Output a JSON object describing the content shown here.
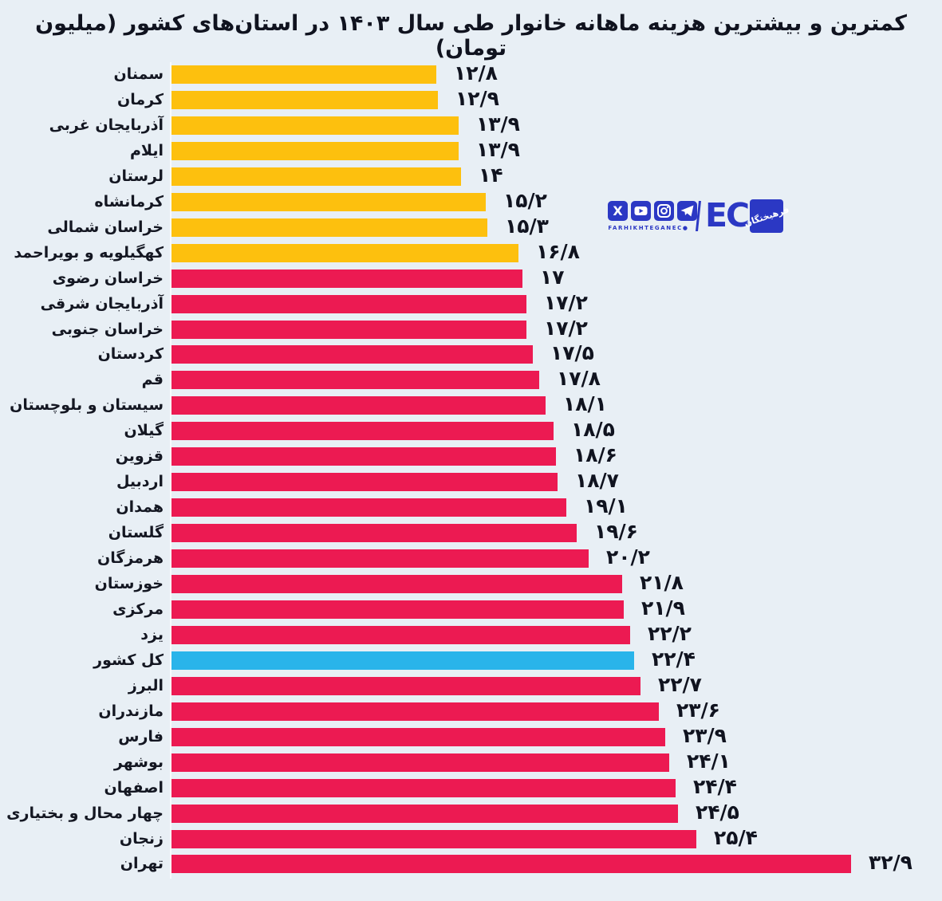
{
  "title": "کمترین و بیشترین هزینه ماهانه خانوار طی سال ۱۴۰۳ در استان‌های کشور (میلیون تومان)",
  "chart_data": {
    "type": "bar",
    "orientation": "horizontal",
    "title": "کمترین و بیشترین هزینه ماهانه خانوار طی سال ۱۴۰۳ در استان‌های کشور (میلیون تومان)",
    "unit": "میلیون تومان",
    "xlim": [
      0,
      33
    ],
    "legend": "none",
    "grid": false,
    "colors": {
      "lowest": "#fdc00e",
      "regular": "#ec1a52",
      "national": "#29b4ea",
      "background": "#e8eff5",
      "text": "#10131f"
    },
    "bars": [
      {
        "label": "سمنان",
        "value": 12.8,
        "value_label": "۱۲/۸",
        "group": "lowest"
      },
      {
        "label": "کرمان",
        "value": 12.9,
        "value_label": "۱۲/۹",
        "group": "lowest"
      },
      {
        "label": "آذربایجان غربی",
        "value": 13.9,
        "value_label": "۱۳/۹",
        "group": "lowest"
      },
      {
        "label": "ایلام",
        "value": 13.9,
        "value_label": "۱۳/۹",
        "group": "lowest"
      },
      {
        "label": "لرستان",
        "value": 14.0,
        "value_label": "۱۴",
        "group": "lowest"
      },
      {
        "label": "کرمانشاه",
        "value": 15.2,
        "value_label": "۱۵/۲",
        "group": "lowest"
      },
      {
        "label": "خراسان شمالی",
        "value": 15.3,
        "value_label": "۱۵/۳",
        "group": "lowest"
      },
      {
        "label": "کهگیلویه و بویراحمد",
        "value": 16.8,
        "value_label": "۱۶/۸",
        "group": "lowest"
      },
      {
        "label": "خراسان رضوی",
        "value": 17.0,
        "value_label": "۱۷",
        "group": "regular"
      },
      {
        "label": "آذربایجان شرقی",
        "value": 17.2,
        "value_label": "۱۷/۲",
        "group": "regular"
      },
      {
        "label": "خراسان جنوبی",
        "value": 17.2,
        "value_label": "۱۷/۲",
        "group": "regular"
      },
      {
        "label": "کردستان",
        "value": 17.5,
        "value_label": "۱۷/۵",
        "group": "regular"
      },
      {
        "label": "قم",
        "value": 17.8,
        "value_label": "۱۷/۸",
        "group": "regular"
      },
      {
        "label": "سیستان و بلوچستان",
        "value": 18.1,
        "value_label": "۱۸/۱",
        "group": "regular"
      },
      {
        "label": "گیلان",
        "value": 18.5,
        "value_label": "۱۸/۵",
        "group": "regular"
      },
      {
        "label": "قزوین",
        "value": 18.6,
        "value_label": "۱۸/۶",
        "group": "regular"
      },
      {
        "label": "اردبیل",
        "value": 18.7,
        "value_label": "۱۸/۷",
        "group": "regular"
      },
      {
        "label": "همدان",
        "value": 19.1,
        "value_label": "۱۹/۱",
        "group": "regular"
      },
      {
        "label": "گلستان",
        "value": 19.6,
        "value_label": "۱۹/۶",
        "group": "regular"
      },
      {
        "label": "هرمزگان",
        "value": 20.2,
        "value_label": "۲۰/۲",
        "group": "regular"
      },
      {
        "label": "خوزستان",
        "value": 21.8,
        "value_label": "۲۱/۸",
        "group": "regular"
      },
      {
        "label": "مرکزی",
        "value": 21.9,
        "value_label": "۲۱/۹",
        "group": "regular"
      },
      {
        "label": "یزد",
        "value": 22.2,
        "value_label": "۲۲/۲",
        "group": "regular"
      },
      {
        "label": "کل کشور",
        "value": 22.4,
        "value_label": "۲۲/۴",
        "group": "national"
      },
      {
        "label": "البرز",
        "value": 22.7,
        "value_label": "۲۲/۷",
        "group": "regular"
      },
      {
        "label": "مازندران",
        "value": 23.6,
        "value_label": "۲۳/۶",
        "group": "regular"
      },
      {
        "label": "فارس",
        "value": 23.9,
        "value_label": "۲۳/۹",
        "group": "regular"
      },
      {
        "label": "بوشهر",
        "value": 24.1,
        "value_label": "۲۴/۱",
        "group": "regular"
      },
      {
        "label": "اصفهان",
        "value": 24.4,
        "value_label": "۲۴/۴",
        "group": "regular"
      },
      {
        "label": "چهار محال و بختیاری",
        "value": 24.5,
        "value_label": "۲۴/۵",
        "group": "regular"
      },
      {
        "label": "زنجان",
        "value": 25.4,
        "value_label": "۲۵/۴",
        "group": "regular"
      },
      {
        "label": "تهران",
        "value": 32.9,
        "value_label": "۳۲/۹",
        "group": "regular"
      }
    ]
  },
  "logo": {
    "caption": "FARHIKHTEGANEC●",
    "wordmark": "EC",
    "badge_text": "فرهیختگان",
    "brand_color": "#2b38c4",
    "icons": [
      "x-icon",
      "youtube-icon",
      "instagram-icon",
      "telegram-icon"
    ]
  }
}
